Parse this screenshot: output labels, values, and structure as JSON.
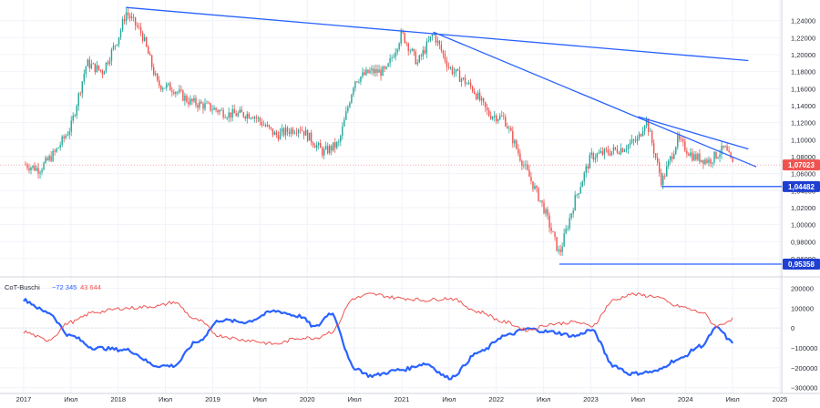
{
  "colors": {
    "up": "#26a69a",
    "down": "#ef5350",
    "trend": "#2962ff",
    "level_line": "#2962ff",
    "cot_blue": "#2962ff",
    "cot_red": "#ef5350",
    "grid": "#f0f3fa",
    "axis_text": "#2a2e39"
  },
  "chart_data": [
    {
      "type": "candlestick",
      "title": "",
      "y_axis_ticks": [
        "1,24000",
        "1,22000",
        "1,20000",
        "1,18000",
        "1,16000",
        "1,14000",
        "1,12000",
        "1,10000",
        "1,08000",
        "1,06000",
        "1,04000",
        "1,02000",
        "1,00000",
        "0,98000",
        "0,96000"
      ],
      "ylim": [
        0.945,
        1.26
      ],
      "last_price": {
        "value": 1.07023,
        "label": "1,07023"
      },
      "levels": [
        {
          "value": 1.04482,
          "label": "1,04482",
          "from": "2023-10"
        },
        {
          "value": 0.95358,
          "label": "0,95358",
          "from": "2022-09"
        }
      ],
      "trendlines": [
        {
          "from": [
            "2018-02",
            1.2555
          ],
          "to": [
            "2024-09",
            1.193
          ]
        },
        {
          "from": [
            "2021-05",
            1.2266
          ],
          "to": [
            "2024-10",
            1.068
          ]
        },
        {
          "from": [
            "2023-07",
            1.127
          ],
          "to": [
            "2024-09",
            1.089
          ]
        }
      ],
      "close_path": [
        [
          "2017-01",
          1.071
        ],
        [
          "2017-03",
          1.065
        ],
        [
          "2017-05",
          1.085
        ],
        [
          "2017-07",
          1.115
        ],
        [
          "2017-09",
          1.19
        ],
        [
          "2017-11",
          1.18
        ],
        [
          "2018-01",
          1.22
        ],
        [
          "2018-02",
          1.25
        ],
        [
          "2018-04",
          1.225
        ],
        [
          "2018-06",
          1.165
        ],
        [
          "2018-08",
          1.16
        ],
        [
          "2018-10",
          1.145
        ],
        [
          "2018-12",
          1.14
        ],
        [
          "2019-03",
          1.13
        ],
        [
          "2019-06",
          1.13
        ],
        [
          "2019-09",
          1.105
        ],
        [
          "2019-12",
          1.115
        ],
        [
          "2020-03",
          1.085
        ],
        [
          "2020-05",
          1.095
        ],
        [
          "2020-07",
          1.17
        ],
        [
          "2020-09",
          1.18
        ],
        [
          "2020-11",
          1.18
        ],
        [
          "2021-01",
          1.225
        ],
        [
          "2021-03",
          1.19
        ],
        [
          "2021-05",
          1.225
        ],
        [
          "2021-07",
          1.185
        ],
        [
          "2021-10",
          1.16
        ],
        [
          "2021-12",
          1.13
        ],
        [
          "2022-02",
          1.125
        ],
        [
          "2022-04",
          1.08
        ],
        [
          "2022-07",
          1.02
        ],
        [
          "2022-09",
          0.965
        ],
        [
          "2022-11",
          1.03
        ],
        [
          "2023-01",
          1.08
        ],
        [
          "2023-03",
          1.085
        ],
        [
          "2023-05",
          1.09
        ],
        [
          "2023-07",
          1.1
        ],
        [
          "2023-08",
          1.125
        ],
        [
          "2023-10",
          1.05
        ],
        [
          "2023-12",
          1.1
        ],
        [
          "2024-02",
          1.08
        ],
        [
          "2024-04",
          1.075
        ],
        [
          "2024-06",
          1.09
        ],
        [
          "2024-07",
          1.07
        ]
      ]
    },
    {
      "type": "line",
      "title": "CoT-Buschi",
      "legend": [
        "CoT-Buschi",
        "−72 345",
        "43 644"
      ],
      "y_axis_ticks": [
        "200000",
        "100000",
        "0",
        "−100000",
        "−200000",
        "−300000"
      ],
      "ylim": [
        -320000,
        230000
      ],
      "series": [
        {
          "name": "−72 345",
          "color": "cot_blue",
          "values": [
            [
              "2017-01",
              140000
            ],
            [
              "2017-04",
              80000
            ],
            [
              "2017-07",
              -40000
            ],
            [
              "2017-10",
              -100000
            ],
            [
              "2018-02",
              -110000
            ],
            [
              "2018-06",
              -190000
            ],
            [
              "2018-08",
              -190000
            ],
            [
              "2018-11",
              -70000
            ],
            [
              "2019-02",
              40000
            ],
            [
              "2019-05",
              30000
            ],
            [
              "2019-09",
              85000
            ],
            [
              "2019-12",
              60000
            ],
            [
              "2020-02",
              5000
            ],
            [
              "2020-04",
              75000
            ],
            [
              "2020-07",
              -200000
            ],
            [
              "2020-09",
              -240000
            ],
            [
              "2021-01",
              -210000
            ],
            [
              "2021-04",
              -180000
            ],
            [
              "2021-07",
              -250000
            ],
            [
              "2021-11",
              -120000
            ],
            [
              "2022-02",
              -40000
            ],
            [
              "2022-05",
              -5000
            ],
            [
              "2022-08",
              -20000
            ],
            [
              "2022-11",
              -40000
            ],
            [
              "2023-01",
              -10000
            ],
            [
              "2023-04",
              -190000
            ],
            [
              "2023-06",
              -230000
            ],
            [
              "2023-09",
              -220000
            ],
            [
              "2023-12",
              -160000
            ],
            [
              "2024-03",
              -90000
            ],
            [
              "2024-05",
              0
            ],
            [
              "2024-07",
              -72345
            ]
          ]
        },
        {
          "name": "43 644",
          "color": "cot_red",
          "values": [
            [
              "2017-01",
              -20000
            ],
            [
              "2017-04",
              -60000
            ],
            [
              "2017-07",
              30000
            ],
            [
              "2017-10",
              80000
            ],
            [
              "2018-02",
              100000
            ],
            [
              "2018-06",
              110000
            ],
            [
              "2018-08",
              130000
            ],
            [
              "2018-11",
              40000
            ],
            [
              "2019-02",
              -40000
            ],
            [
              "2019-05",
              -60000
            ],
            [
              "2019-09",
              -80000
            ],
            [
              "2019-12",
              -50000
            ],
            [
              "2020-02",
              -50000
            ],
            [
              "2020-04",
              -20000
            ],
            [
              "2020-07",
              150000
            ],
            [
              "2020-09",
              170000
            ],
            [
              "2021-01",
              150000
            ],
            [
              "2021-04",
              140000
            ],
            [
              "2021-07",
              150000
            ],
            [
              "2021-11",
              80000
            ],
            [
              "2022-02",
              30000
            ],
            [
              "2022-05",
              -10000
            ],
            [
              "2022-08",
              20000
            ],
            [
              "2022-11",
              30000
            ],
            [
              "2023-01",
              10000
            ],
            [
              "2023-04",
              140000
            ],
            [
              "2023-06",
              170000
            ],
            [
              "2023-09",
              160000
            ],
            [
              "2023-12",
              110000
            ],
            [
              "2024-03",
              80000
            ],
            [
              "2024-05",
              10000
            ],
            [
              "2024-07",
              43644
            ]
          ]
        }
      ]
    }
  ],
  "time_axis": {
    "labels": [
      {
        "text": "2017",
        "date": "2017-01"
      },
      {
        "text": "Июл",
        "date": "2017-07"
      },
      {
        "text": "2018",
        "date": "2018-01"
      },
      {
        "text": "Июл",
        "date": "2018-07"
      },
      {
        "text": "2019",
        "date": "2019-01"
      },
      {
        "text": "Июл",
        "date": "2019-07"
      },
      {
        "text": "2020",
        "date": "2020-01"
      },
      {
        "text": "Июл",
        "date": "2020-07"
      },
      {
        "text": "2021",
        "date": "2021-01"
      },
      {
        "text": "Июл",
        "date": "2021-07"
      },
      {
        "text": "2022",
        "date": "2022-01"
      },
      {
        "text": "Июл",
        "date": "2022-07"
      },
      {
        "text": "2023",
        "date": "2023-01"
      },
      {
        "text": "Июл",
        "date": "2023-07"
      },
      {
        "text": "2024",
        "date": "2024-01"
      },
      {
        "text": "Июл",
        "date": "2024-07"
      },
      {
        "text": "2025",
        "date": "2025-01"
      }
    ]
  }
}
